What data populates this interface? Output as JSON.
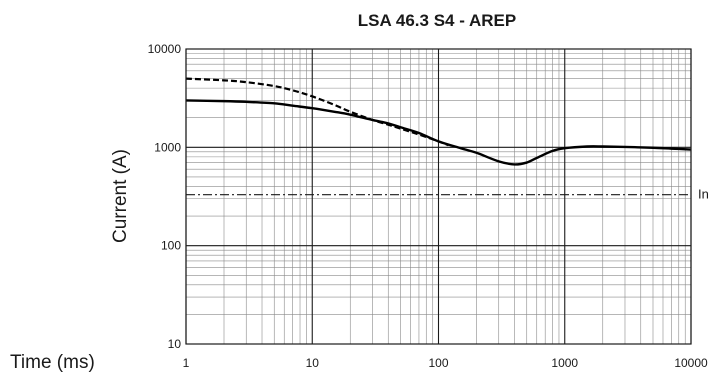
{
  "chart_data": {
    "type": "line",
    "title": "LSA 46.3 S4 - AREP",
    "xlabel": "Time (ms)",
    "ylabel": "Current (A)",
    "xscale": "log",
    "yscale": "log",
    "xlim": [
      1,
      10000
    ],
    "ylim": [
      10,
      10000
    ],
    "grid": true,
    "legend": "none",
    "x_ticks": [
      1,
      10,
      100,
      1000,
      10000
    ],
    "x_tick_labels": [
      "1",
      "10",
      "100",
      "1000",
      "10000"
    ],
    "y_ticks": [
      10,
      100,
      1000,
      10000
    ],
    "y_tick_labels": [
      "10",
      "100",
      "1000",
      "10000"
    ],
    "series": [
      {
        "style": "solid",
        "x": [
          1,
          2,
          3,
          5,
          7,
          10,
          15,
          20,
          30,
          40,
          50,
          70,
          100,
          150,
          200,
          300,
          400,
          500,
          600,
          800,
          1000,
          1500,
          2000,
          3000,
          5000,
          7000,
          10000
        ],
        "y": [
          3000,
          2950,
          2900,
          2800,
          2650,
          2500,
          2300,
          2150,
          1900,
          1750,
          1600,
          1400,
          1150,
          980,
          880,
          720,
          670,
          700,
          780,
          920,
          980,
          1020,
          1020,
          1010,
          990,
          970,
          950
        ]
      },
      {
        "style": "dashed",
        "x": [
          1,
          2,
          3,
          5,
          7,
          10,
          15,
          20,
          30,
          40,
          50,
          70,
          100,
          120
        ],
        "y": [
          5000,
          4800,
          4600,
          4200,
          3800,
          3300,
          2700,
          2300,
          1900,
          1700,
          1550,
          1350,
          1150,
          1050
        ]
      }
    ],
    "annotations": [
      {
        "label": "In",
        "y": 330,
        "style": "dashdot"
      }
    ]
  }
}
